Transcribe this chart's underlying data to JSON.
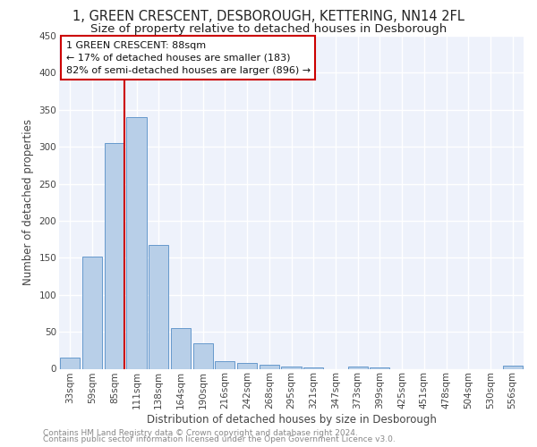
{
  "title": "1, GREEN CRESCENT, DESBOROUGH, KETTERING, NN14 2FL",
  "subtitle": "Size of property relative to detached houses in Desborough",
  "xlabel": "Distribution of detached houses by size in Desborough",
  "ylabel": "Number of detached properties",
  "categories": [
    "33sqm",
    "59sqm",
    "85sqm",
    "111sqm",
    "138sqm",
    "164sqm",
    "190sqm",
    "216sqm",
    "242sqm",
    "268sqm",
    "295sqm",
    "321sqm",
    "347sqm",
    "373sqm",
    "399sqm",
    "425sqm",
    "451sqm",
    "478sqm",
    "504sqm",
    "530sqm",
    "556sqm"
  ],
  "values": [
    15,
    152,
    305,
    340,
    167,
    55,
    34,
    10,
    8,
    5,
    3,
    2,
    0,
    3,
    2,
    0,
    0,
    0,
    0,
    0,
    4
  ],
  "bar_color": "#b8cfe8",
  "bar_edge_color": "#6699cc",
  "background_color": "#eef2fb",
  "grid_color": "#ffffff",
  "annotation_text_line1": "1 GREEN CRESCENT: 88sqm",
  "annotation_text_line2": "← 17% of detached houses are smaller (183)",
  "annotation_text_line3": "82% of semi-detached houses are larger (896) →",
  "annotation_box_facecolor": "#ffffff",
  "annotation_box_edgecolor": "#cc0000",
  "property_line_color": "#cc0000",
  "ylim": [
    0,
    450
  ],
  "yticks": [
    0,
    50,
    100,
    150,
    200,
    250,
    300,
    350,
    400,
    450
  ],
  "footer_text1": "Contains HM Land Registry data © Crown copyright and database right 2024.",
  "footer_text2": "Contains public sector information licensed under the Open Government Licence v3.0.",
  "title_fontsize": 10.5,
  "subtitle_fontsize": 9.5,
  "axis_label_fontsize": 8.5,
  "tick_fontsize": 7.5,
  "annotation_fontsize": 8,
  "footer_fontsize": 6.5
}
